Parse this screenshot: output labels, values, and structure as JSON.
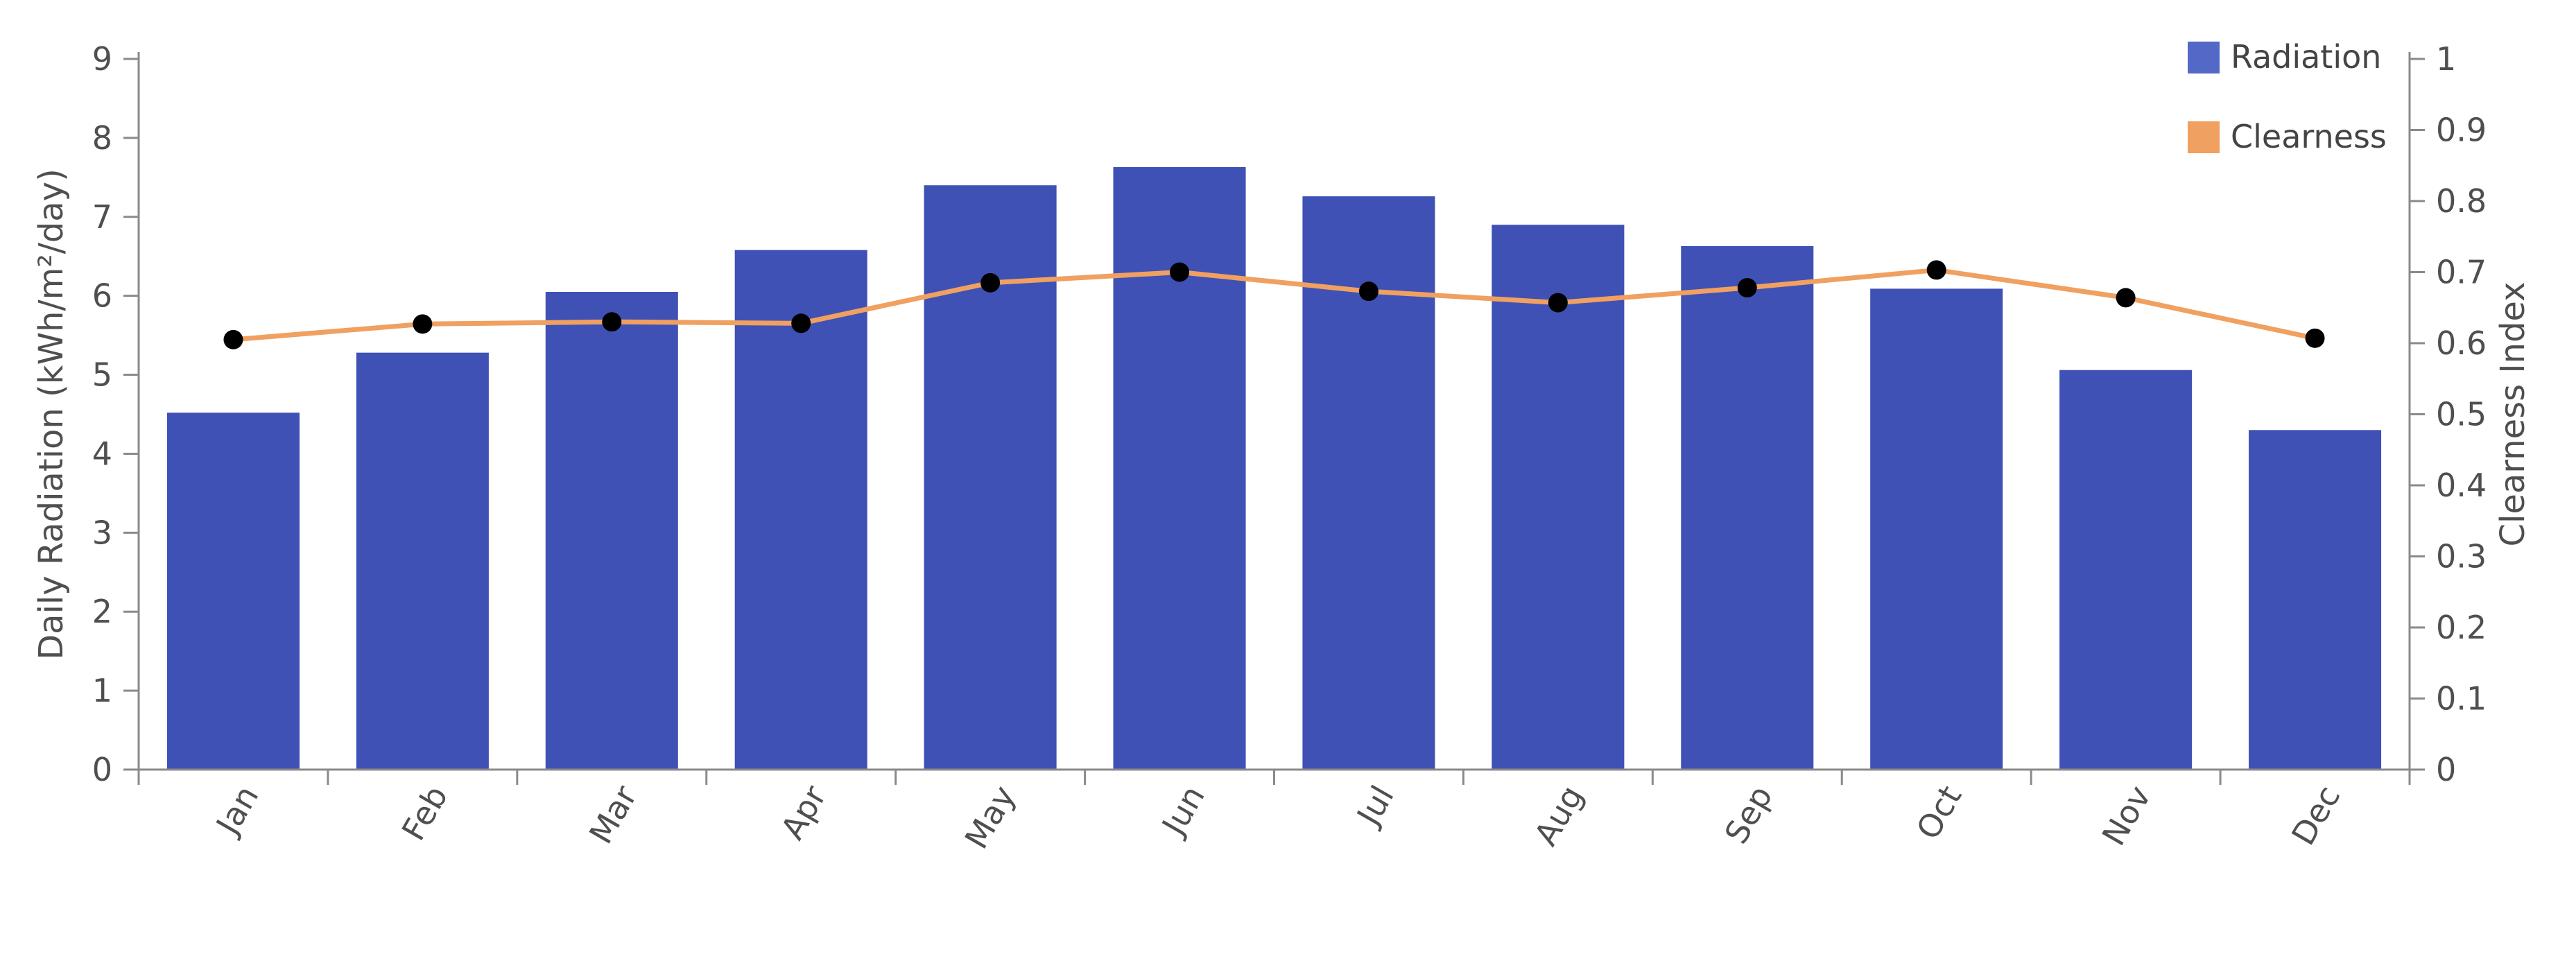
{
  "chart_data": {
    "type": "bar",
    "categories": [
      "Jan",
      "Feb",
      "Mar",
      "Apr",
      "May",
      "Jun",
      "Jul",
      "Aug",
      "Sep",
      "Oct",
      "Nov",
      "Dec"
    ],
    "series": [
      {
        "name": "Radiation",
        "type": "bar",
        "axis": "left",
        "color": "#3f51b5",
        "values": [
          4.52,
          5.28,
          6.05,
          6.58,
          7.4,
          7.63,
          7.26,
          6.9,
          6.63,
          6.09,
          5.06,
          4.3
        ]
      },
      {
        "name": "Clearness",
        "type": "line",
        "axis": "right",
        "color": "#f0a060",
        "marker_color": "#000000",
        "values": [
          0.605,
          0.627,
          0.63,
          0.628,
          0.685,
          0.7,
          0.673,
          0.657,
          0.678,
          0.703,
          0.664,
          0.607
        ]
      }
    ],
    "ylabel": "Daily Radiation (kWh/m²/day)",
    "y2label": "Clearness Index",
    "ylim": [
      0,
      9
    ],
    "y2lim": [
      0,
      1
    ],
    "yticks": [
      "0",
      "1",
      "2",
      "3",
      "4",
      "5",
      "6",
      "7",
      "8",
      "9"
    ],
    "y2ticks": [
      "0",
      "0.1",
      "0.2",
      "0.3",
      "0.4",
      "0.5",
      "0.6",
      "0.7",
      "0.8",
      "0.9",
      "1"
    ],
    "grid": false,
    "legend": {
      "position": "top-right",
      "items": [
        {
          "label": "Radiation",
          "color": "#5468c8"
        },
        {
          "label": "Clearness",
          "color": "#f0a060"
        }
      ]
    }
  }
}
